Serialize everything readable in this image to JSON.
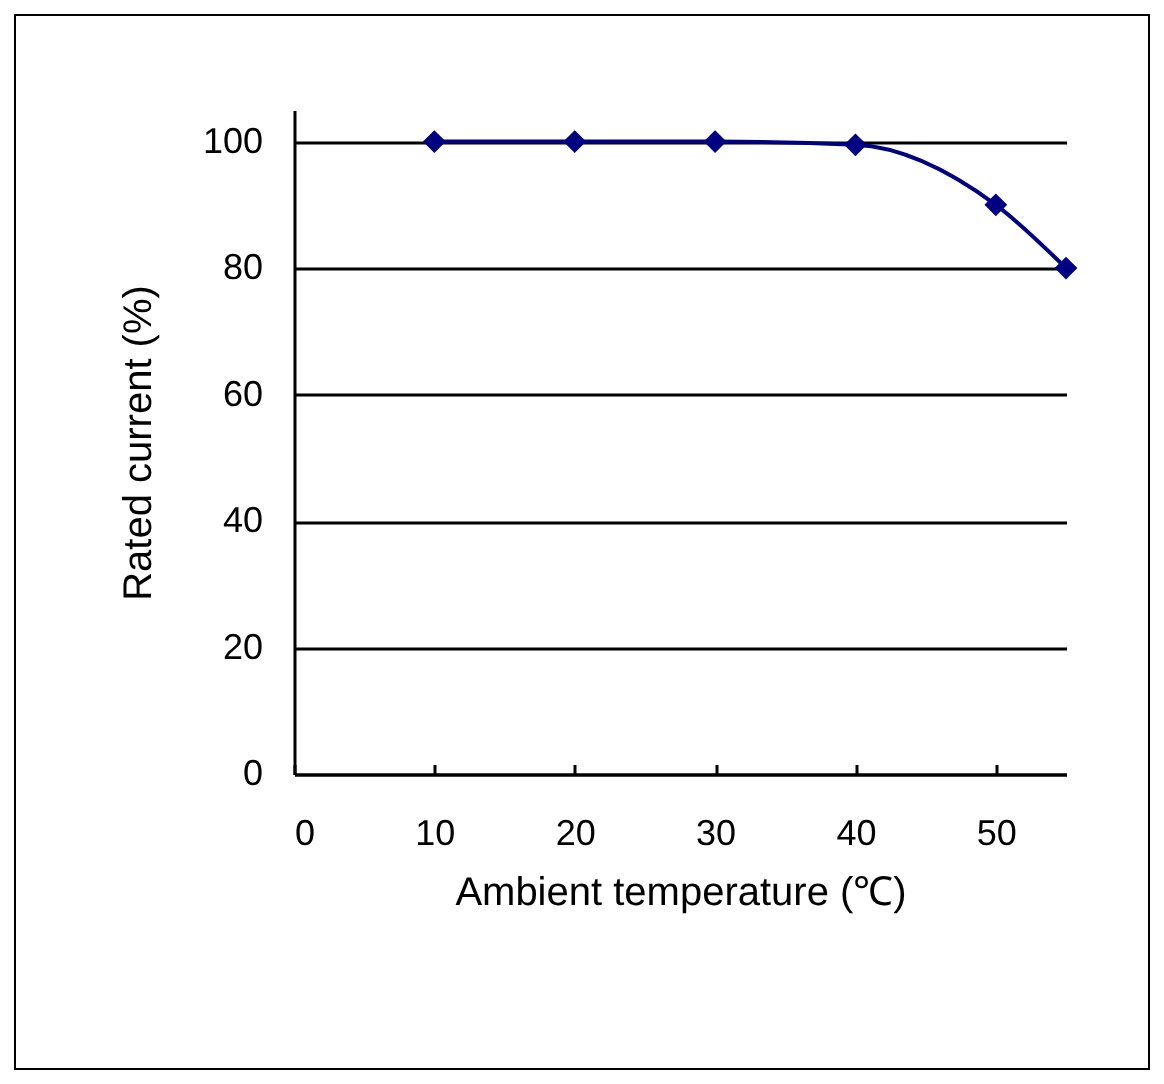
{
  "chart_data": {
    "type": "line",
    "xlabel": "Ambient temperature (℃)",
    "ylabel": "Rated current (%)",
    "x": [
      10,
      20,
      30,
      40,
      50,
      55
    ],
    "series": [
      {
        "color": "#000080",
        "values": [
          100,
          100,
          100,
          99.5,
          90,
          80
        ]
      }
    ],
    "xlim": [
      0,
      55
    ],
    "xticks": [
      0,
      10,
      20,
      30,
      40,
      50
    ],
    "ylim": [
      0,
      105
    ],
    "yticks": [
      0,
      20,
      40,
      60,
      80,
      100
    ],
    "grid": "y",
    "marker": "diamond",
    "line_style": "solid"
  }
}
